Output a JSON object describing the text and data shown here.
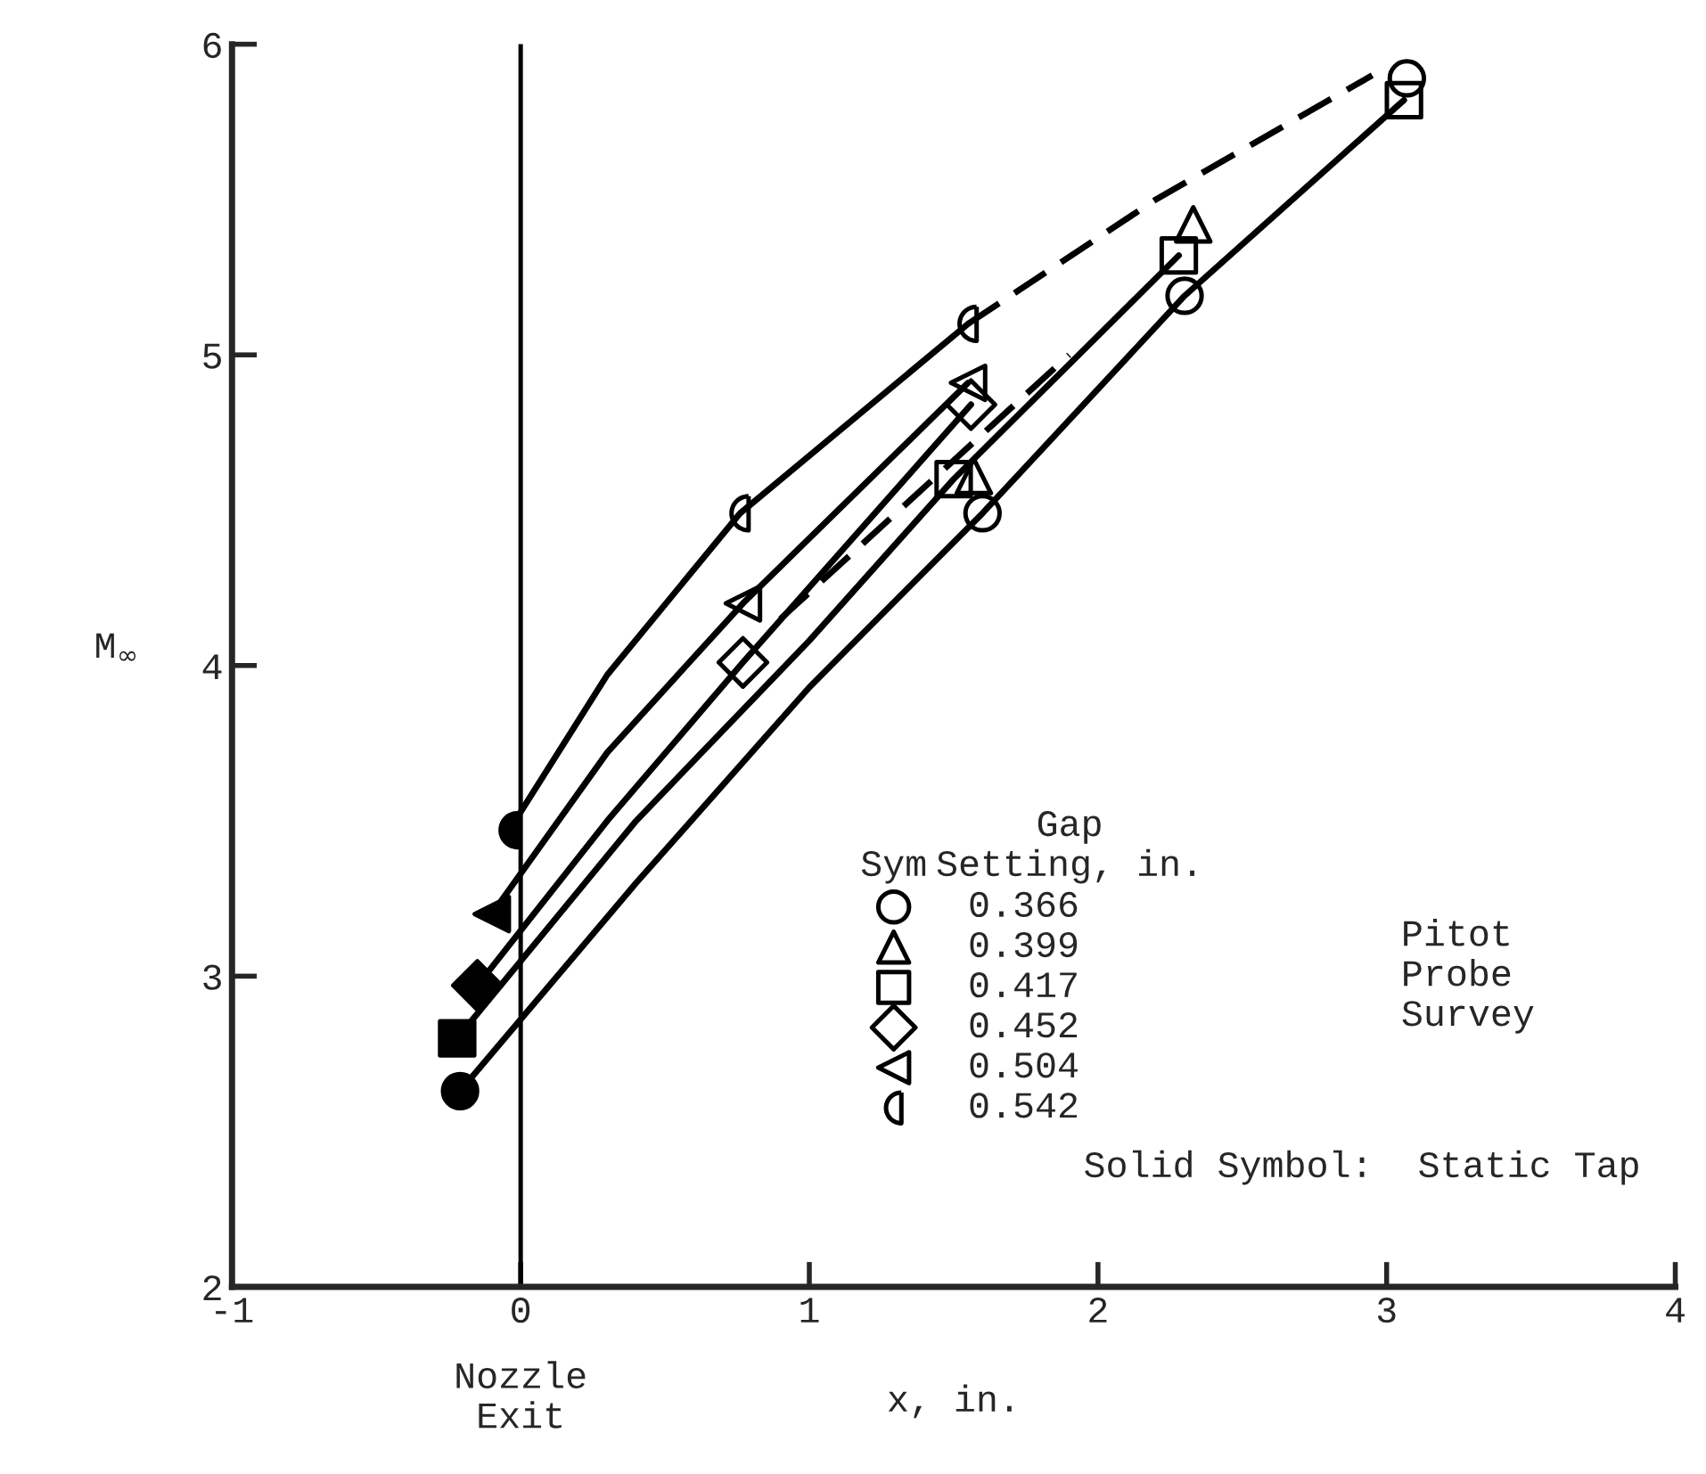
{
  "chart_data": {
    "type": "scatter",
    "xlabel": "x, in.",
    "ylabel": "M$_{∞}$",
    "legend_title": "Gap\nSetting, in.",
    "xlim": [
      -1,
      4
    ],
    "ylim": [
      2,
      6
    ],
    "xticks": [
      -1,
      0,
      1,
      2,
      3,
      4
    ],
    "yticks": [
      2,
      3,
      4,
      5,
      6
    ],
    "legend": "bottom right",
    "ref_lines": [
      {
        "axis": "x",
        "value": 0,
        "label": "Nozzle\nExit",
        "color": "#000000"
      }
    ],
    "annotations": [
      "Sym",
      "Pitot\nProbe\nSurvey",
      "Solid Symbol:  Static Tap"
    ],
    "series": [
      {
        "type": "line",
        "color": "#000000",
        "line_style": "solid",
        "x": [
          -0.21,
          0.4,
          1.0,
          1.6,
          2.3,
          3.06
        ],
        "values": [
          2.63,
          3.3,
          3.93,
          4.49,
          5.19,
          5.82
        ]
      },
      {
        "type": "line",
        "color": "#000000",
        "line_style": "solid",
        "x": [
          -0.22,
          0.4,
          1.0,
          1.5,
          2.28
        ],
        "values": [
          2.8,
          3.5,
          4.08,
          4.6,
          5.32
        ]
      },
      {
        "type": "line",
        "color": "#000000",
        "line_style": "solid",
        "x": [
          -0.15,
          0.3,
          0.77,
          1.56
        ],
        "values": [
          2.97,
          3.5,
          4.01,
          4.84
        ]
      },
      {
        "type": "line",
        "color": "#000000",
        "line_style": "solid",
        "x": [
          -0.1,
          0.3,
          0.77,
          1.55
        ],
        "values": [
          3.2,
          3.72,
          4.2,
          4.91
        ]
      },
      {
        "type": "line",
        "color": "#000000",
        "line_style": "solid",
        "x": [
          -0.04,
          0.3,
          0.76,
          1.55
        ],
        "values": [
          3.47,
          3.97,
          4.49,
          5.1
        ]
      },
      {
        "type": "line",
        "color": "#000000",
        "line_style": "dashed",
        "x": [
          1.55,
          2.2,
          2.95
        ],
        "values": [
          5.1,
          5.5,
          5.9
        ]
      },
      {
        "type": "line",
        "color": "#000000",
        "line_style": "dashed",
        "x": [
          0.9,
          1.9
        ],
        "values": [
          4.15,
          5.0
        ]
      },
      {
        "name": "0.366",
        "marker": "circle",
        "color": "#000000",
        "x": [
          1.6,
          2.3,
          3.07
        ],
        "values": [
          4.49,
          5.19,
          5.89
        ]
      },
      {
        "name": "0.399",
        "marker": "triangle",
        "color": "#000000",
        "x": [
          1.57,
          2.33
        ],
        "values": [
          4.61,
          5.42
        ]
      },
      {
        "name": "0.417",
        "marker": "square",
        "color": "#000000",
        "x": [
          1.5,
          2.28,
          3.06
        ],
        "values": [
          4.6,
          5.32,
          5.82
        ]
      },
      {
        "name": "0.452",
        "marker": "diamond",
        "color": "#000000",
        "x": [
          0.77,
          1.56
        ],
        "values": [
          4.01,
          4.84
        ]
      },
      {
        "name": "0.504",
        "marker": "triangle_left",
        "color": "#000000",
        "x": [
          0.77,
          1.55
        ],
        "values": [
          4.2,
          4.91
        ]
      },
      {
        "name": "0.542",
        "marker": "half_circle",
        "color": "#000000",
        "x": [
          0.76,
          1.55
        ],
        "values": [
          4.49,
          5.1
        ]
      },
      {
        "marker": "circle",
        "color": "#000000",
        "x": [
          -0.21
        ],
        "values": [
          2.63
        ]
      },
      {
        "marker": "square",
        "color": "#000000",
        "x": [
          -0.22
        ],
        "values": [
          2.8
        ]
      },
      {
        "marker": "diamond",
        "color": "#000000",
        "x": [
          -0.15
        ],
        "values": [
          2.97
        ]
      },
      {
        "marker": "triangle_left",
        "color": "#000000",
        "x": [
          -0.1
        ],
        "values": [
          3.2
        ]
      },
      {
        "marker": "half_circle",
        "color": "#000000",
        "x": [
          -0.04
        ],
        "values": [
          3.47
        ]
      }
    ]
  }
}
